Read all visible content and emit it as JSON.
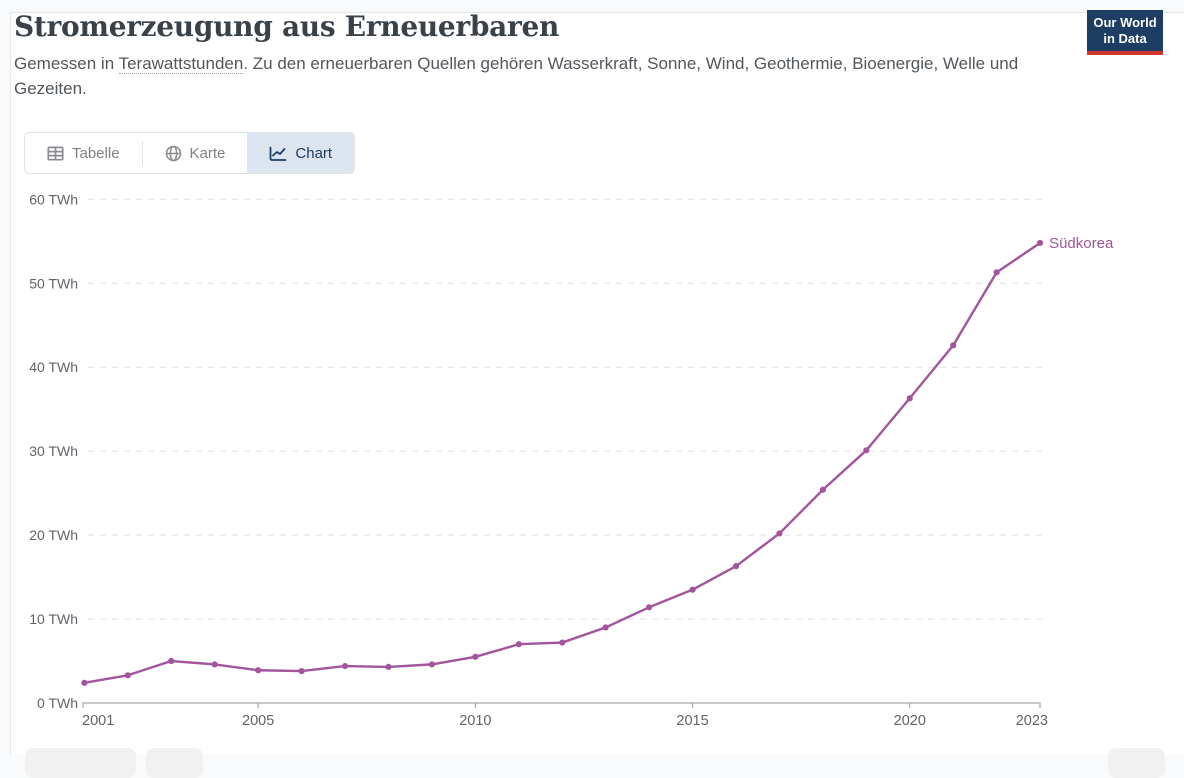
{
  "header": {
    "title": "Stromerzeugung aus Erneuerbaren",
    "subtitle_prefix": "Gemessen in ",
    "subtitle_link_term": "Terawattstunden",
    "subtitle_suffix": ". Zu den erneuerbaren Quellen gehören Wasserkraft, Sonne, Wind, Geothermie, Bioenergie, Welle und Gezeiten.",
    "logo": {
      "line1": "Our World",
      "line2": "in Data",
      "bg_color": "#1d3d63",
      "accent_color": "#cf362e"
    }
  },
  "tabs": [
    {
      "label": "Tabelle",
      "icon": "table-icon",
      "active": false
    },
    {
      "label": "Karte",
      "icon": "globe-icon",
      "active": false
    },
    {
      "label": "Chart",
      "icon": "line-chart-icon",
      "active": true
    }
  ],
  "chart_data": {
    "type": "line",
    "title": "Stromerzeugung aus Erneuerbaren",
    "unit": "TWh",
    "x": [
      2001,
      2002,
      2003,
      2004,
      2005,
      2006,
      2007,
      2008,
      2009,
      2010,
      2011,
      2012,
      2013,
      2014,
      2015,
      2016,
      2017,
      2018,
      2019,
      2020,
      2021,
      2022,
      2023
    ],
    "series": [
      {
        "name": "Südkorea",
        "color": "#a2559c",
        "values": [
          2.4,
          3.3,
          5.0,
          4.6,
          3.9,
          3.8,
          4.4,
          4.3,
          4.6,
          5.5,
          7.0,
          7.2,
          9.0,
          11.4,
          13.5,
          16.3,
          20.2,
          25.4,
          30.1,
          36.3,
          42.6,
          51.3,
          54.8
        ]
      }
    ],
    "ylim": [
      0,
      60
    ],
    "y_ticks": [
      0,
      10,
      20,
      30,
      40,
      50,
      60
    ],
    "y_tick_labels": [
      "0 TWh",
      "10 TWh",
      "20 TWh",
      "30 TWh",
      "40 TWh",
      "50 TWh",
      "60 TWh"
    ],
    "x_ticks": [
      2001,
      2005,
      2010,
      2015,
      2020,
      2023
    ],
    "x_tick_labels": [
      "2001",
      "2005",
      "2010",
      "2015",
      "2020",
      "2023"
    ],
    "grid": "dashed-horizontal",
    "legend_position": "end-of-line-label",
    "colors": {
      "grid": "#e0e0e0",
      "axis": "#a8a8a8",
      "tick_text": "#606469"
    }
  }
}
